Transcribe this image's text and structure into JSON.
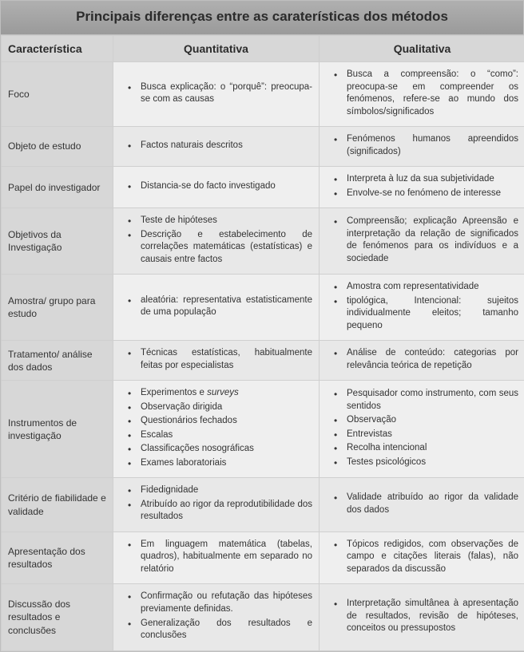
{
  "title": "Principais diferenças entre as caraterísticas dos métodos",
  "headers": {
    "c0": "Característica",
    "c1": "Quantitativa",
    "c2": "Qualitativa"
  },
  "rows": [
    {
      "char": "Foco",
      "quant": [
        "Busca explicação: o “porquê”: preocupa-se com as causas"
      ],
      "qual": [
        "Busca a compreensão: o “como”: preocupa-se em compreender os fenómenos, refere-se ao mundo dos símbolos/significados"
      ]
    },
    {
      "char": "Objeto de estudo",
      "quant": [
        "Factos naturais descritos"
      ],
      "qual": [
        "Fenómenos humanos apreendidos (significados)"
      ]
    },
    {
      "char": "Papel do investigador",
      "quant": [
        "Distancia-se do facto investigado"
      ],
      "qual": [
        "Interpreta à luz da sua subjetividade",
        "Envolve-se no fenómeno de interesse"
      ]
    },
    {
      "char": "Objetivos da Investigação",
      "quant": [
        "Teste de hipóteses",
        "Descrição e estabelecimento de correlações matemáticas (estatísticas) e causais entre factos"
      ],
      "qual": [
        "Compreensão; explicação Apreensão e interpretação da relação de significados de fenómenos para os indivíduos e a sociedade"
      ]
    },
    {
      "char": "Amostra/ grupo para estudo",
      "quant": [
        "aleatória: representativa estatisticamente de uma população"
      ],
      "qual": [
        "Amostra com representatividade",
        "tipológica, Intencional: sujeitos individualmente eleitos; tamanho pequeno"
      ]
    },
    {
      "char": "Tratamento/ análise dos dados",
      "quant": [
        "Técnicas estatísticas, habitualmente feitas por especialistas"
      ],
      "qual": [
        "Análise de conteúdo: categorias por relevância teórica de repetição"
      ]
    },
    {
      "char": "Instrumentos de investigação",
      "quant_special": "instruments",
      "quant": [
        "Experimentos e <span class=\"em\">surveys</span>",
        "Observação dirigida",
        "Questionários fechados",
        "Escalas",
        "Classificações nosográficas",
        "Exames laboratoriais"
      ],
      "qual": [
        "Pesquisador como instrumento, com seus sentidos",
        "Observação",
        "Entrevistas",
        "Recolha intencional",
        "Testes psicológicos"
      ]
    },
    {
      "char": "Critério de fiabilidade e validade",
      "quant": [
        "Fidedignidade",
        "Atribuído ao rigor da reprodutibilidade dos resultados"
      ],
      "qual": [
        "Validade atribuído ao rigor da validade dos dados"
      ]
    },
    {
      "char": "Apresentação dos resultados",
      "quant": [
        "Em linguagem matemática (tabelas, quadros), habitualmente em separado no relatório"
      ],
      "qual": [
        "Tópicos redigidos, com observações de campo e citações literais (falas), não separados da discussão"
      ]
    },
    {
      "char": "Discussão dos resultados e conclusões",
      "quant": [
        "Confirmação ou refutação das hipóteses previamente definidas.",
        "Generalização dos resultados e conclusões"
      ],
      "qual": [
        "Interpretação simultânea à apresentação de resultados, revisão de hipóteses, conceitos ou pressupostos"
      ]
    }
  ]
}
